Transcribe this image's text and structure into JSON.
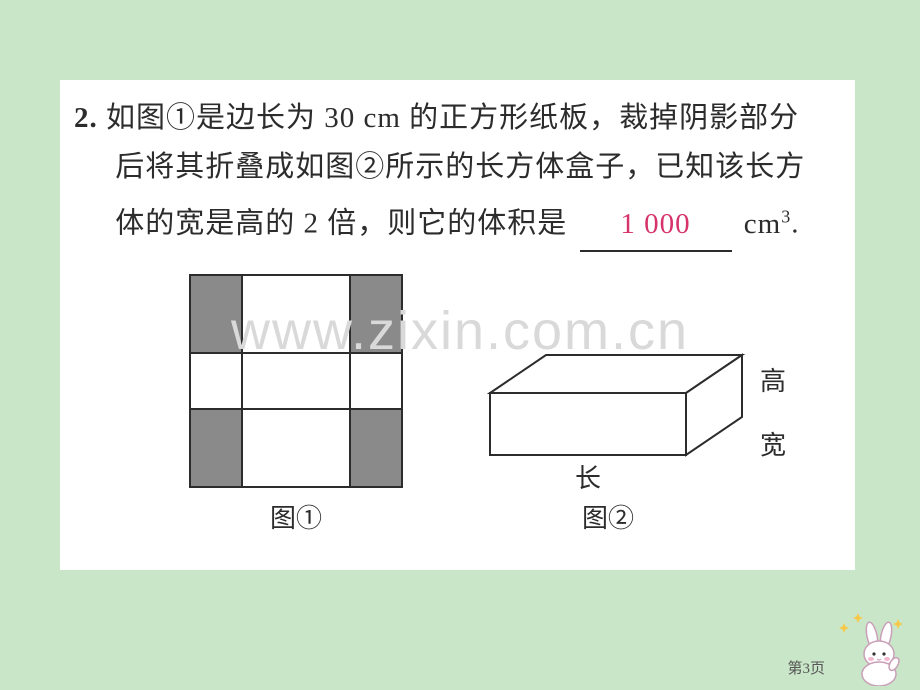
{
  "page": {
    "background_color": "#c9e6c9",
    "card_background": "#ffffff",
    "text_color": "#2c2c2c",
    "answer_color": "#d6336c",
    "watermark_text": "www.zixin.com.cn",
    "watermark_color": "#d9d9d9",
    "page_number_label": "第3页"
  },
  "problem": {
    "number": "2.",
    "line1": "如图①是边长为 30 cm 的正方形纸板，裁掉阴影部分",
    "line2": "后将其折叠成如图②所示的长方体盒子，已知该长方",
    "line3_a": "体的宽是高的 2 倍，则它的体积是",
    "answer": "1 000",
    "unit": "cm",
    "unit_exp": "3",
    "period": "."
  },
  "figure1": {
    "caption": "图①",
    "side": 212,
    "grid_color": "#2c2c2c",
    "fill_color": "#8a8a8a",
    "cols": [
      52,
      108,
      52
    ],
    "rows": [
      78,
      56,
      78
    ]
  },
  "figure2": {
    "caption": "图②",
    "label_length": "长",
    "label_width": "宽",
    "label_height": "高",
    "stroke": "#2c2c2c",
    "front_w": 196,
    "front_h": 62,
    "depth_dx": 56,
    "depth_dy": 38
  },
  "bunny": {
    "body_color": "#ffffff",
    "outline": "#c9a0b8",
    "sparkle": "#f7c948"
  }
}
